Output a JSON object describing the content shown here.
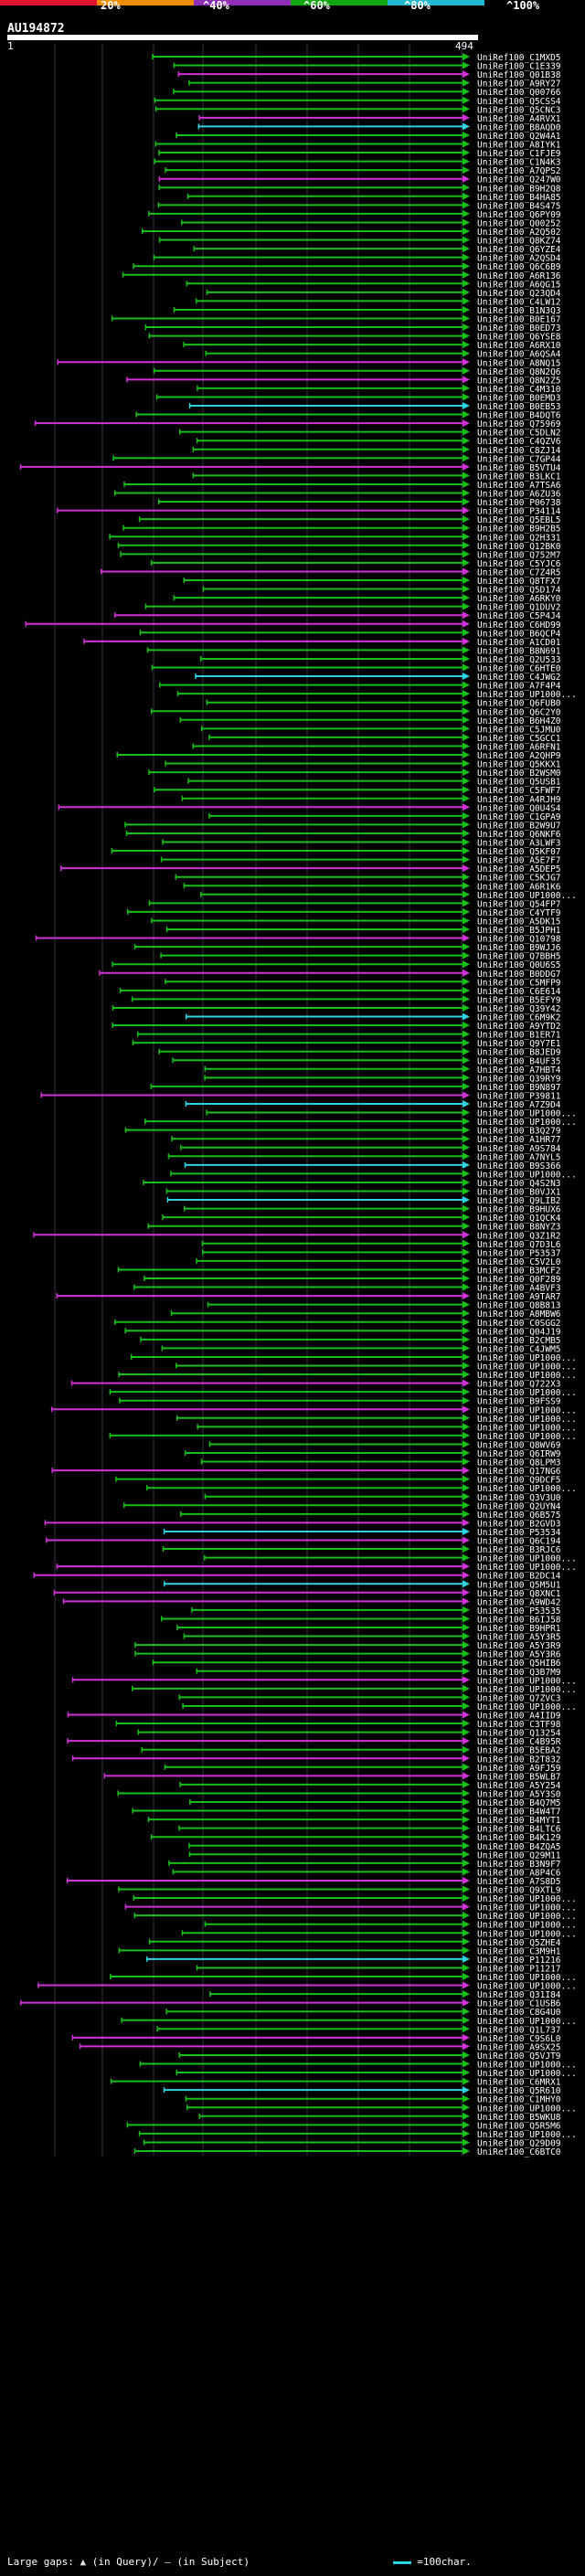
{
  "header": {
    "percent_labels": [
      "20%",
      "^40%",
      "^60%",
      "^80%",
      "^100%"
    ],
    "query_id": "AU194872",
    "scale_start": "1",
    "scale_end": "494"
  },
  "colors": {
    "bar": [
      "#e0142c",
      "#f08c00",
      "#8f2fb5",
      "#11a811",
      "#1fb8cf"
    ],
    "green": "#16c016",
    "magenta": "#d132d8",
    "cyan": "#2fd3e0",
    "grid": "#334"
  },
  "hits": [
    "UniRef100_C1MXD5",
    "UniRef100_C1E339",
    "UniRef100_Q01B38",
    "UniRef100_A9RY27",
    "UniRef100_Q00766",
    "UniRef100_Q5CSS4",
    "UniRef100_Q5CNC3",
    "UniRef100_A4RVX1",
    "UniRef100_B8AQD0",
    "UniRef100_Q2W4A1",
    "UniRef100_A8IYK1",
    "UniRef100_C1FJE9",
    "UniRef100_C1N4K3",
    "UniRef100_A7QPS2",
    "UniRef100_Q247W0",
    "UniRef100_B9H2Q8",
    "UniRef100_B4HA85",
    "UniRef100_B4S475",
    "UniRef100_Q6PY09",
    "UniRef100_Q00252",
    "UniRef100_A2Q502",
    "UniRef100_Q8KZ74",
    "UniRef100_Q6YZE4",
    "UniRef100_A2QSD4",
    "UniRef100_Q6C6B9",
    "UniRef100_A6R136",
    "UniRef100_A6QG15",
    "UniRef100_Q23QD4",
    "UniRef100_C4LW12",
    "UniRef100_B1N3Q3",
    "UniRef100_B0E167",
    "UniRef100_B0ED73",
    "UniRef100_Q6YSE8",
    "UniRef100_A6RX10",
    "UniRef100_A6QSA4",
    "UniRef100_A8NQ15",
    "UniRef100_Q8N2Q6",
    "UniRef100_Q8N2Z5",
    "UniRef100_C4M310",
    "UniRef100_B0EMD3",
    "UniRef100_B0EB53",
    "UniRef100_B4DQT6",
    "UniRef100_Q75969",
    "UniRef100_C5DLN2",
    "UniRef100_C4QZV6",
    "UniRef100_C8ZJ14",
    "UniRef100_C7GP44",
    "UniRef100_B5VTU4",
    "UniRef100_B3LKC1",
    "UniRef100_A7TSA6",
    "UniRef100_A6ZU36",
    "UniRef100_P06738",
    "UniRef100_P34114",
    "UniRef100_Q5EBL5",
    "UniRef100_B9H2B5",
    "UniRef100_Q2H331",
    "UniRef100_Q12BK0",
    "UniRef100_Q752M7",
    "UniRef100_C5YJC6",
    "UniRef100_C7Z4R5",
    "UniRef100_Q8TFX7",
    "UniRef100_Q5D174",
    "UniRef100_A6RKY0",
    "UniRef100_Q1DUV2",
    "UniRef100_C5P4J4",
    "UniRef100_C6HD99",
    "UniRef100_B6QCP4",
    "UniRef100_A1CD01",
    "UniRef100_B8N691",
    "UniRef100_Q2U533",
    "UniRef100_C6HTE0",
    "UniRef100_C4JWG2",
    "UniRef100_A7F4P4",
    "UniRef100_UP1000...",
    "UniRef100_Q6FUB0",
    "UniRef100_Q6C2Y0",
    "UniRef100_B6H4Z0",
    "UniRef100_C5JMU0",
    "UniRef100_C5GCC1",
    "UniRef100_A6RFN1",
    "UniRef100_A2QHP9",
    "UniRef100_Q5KKX1",
    "UniRef100_B2WSM0",
    "UniRef100_Q5USB1",
    "UniRef100_C5FWF7",
    "UniRef100_A4RJH9",
    "UniRef100_Q0U4S4",
    "UniRef100_C1GPA9",
    "UniRef100_B2W9U7",
    "UniRef100_Q6NKF6",
    "UniRef100_A3LWF3",
    "UniRef100_Q5KF07",
    "UniRef100_A5E7F7",
    "UniRef100_A5DEP5",
    "UniRef100_C5KJG7",
    "UniRef100_A6R1K6",
    "UniRef100_UP1000...",
    "UniRef100_Q54FP7",
    "UniRef100_C4YTF9",
    "UniRef100_A5DK15",
    "UniRef100_B5JPH1",
    "UniRef100_Q10798",
    "UniRef100_B9WJJ6",
    "UniRef100_Q7BBH5",
    "UniRef100_Q0U6S5",
    "UniRef100_B0DDG7",
    "UniRef100_C5MFP9",
    "UniRef100_C6E614",
    "UniRef100_B5EFY9",
    "UniRef100_Q39Y42",
    "UniRef100_C6M9K2",
    "UniRef100_A9YTD2",
    "UniRef100_B1ER71",
    "UniRef100_Q9Y7E1",
    "UniRef100_B8JED9",
    "UniRef100_B4UF35",
    "UniRef100_A7HBT4",
    "UniRef100_Q39RY9",
    "UniRef100_B9N897",
    "UniRef100_P39811",
    "UniRef100_A7Z9D4",
    "UniRef100_UP1000...",
    "UniRef100_UP1000...",
    "UniRef100_B3Q279",
    "UniRef100_A1HR77",
    "UniRef100_A9S784",
    "UniRef100_A7NYL5",
    "UniRef100_B9S366",
    "UniRef100_UP1000...",
    "UniRef100_Q4S2N3",
    "UniRef100_B0VJX1",
    "UniRef100_Q9LIB2",
    "UniRef100_B9HUX6",
    "UniRef100_Q1QCK4",
    "UniRef100_B8NYZ3",
    "UniRef100_Q3Z1R2",
    "UniRef100_Q7D3L6",
    "UniRef100_P53537",
    "UniRef100_C5V2L0",
    "UniRef100_B3MCF2",
    "UniRef100_Q0F289",
    "UniRef100_A4BVF3",
    "UniRef100_A9TAR7",
    "UniRef100_Q8B813",
    "UniRef100_A8MBW6",
    "UniRef100_C0SGG2",
    "UniRef100_Q04J19",
    "UniRef100_B2CMB5",
    "UniRef100_C4JWM5",
    "UniRef100_UP1000...",
    "UniRef100_UP1000...",
    "UniRef100_UP1000...",
    "UniRef100_Q722X3",
    "UniRef100_UP1000...",
    "UniRef100_B9FSS9",
    "UniRef100_UP1000...",
    "UniRef100_UP1000...",
    "UniRef100_UP1000...",
    "UniRef100_UP1000...",
    "UniRef100_Q8WV69",
    "UniRef100_Q6IRW9",
    "UniRef100_Q8LPM3",
    "UniRef100_Q17NG6",
    "UniRef100_Q9DCF5",
    "UniRef100_UP1000...",
    "UniRef100_Q3V3U0",
    "UniRef100_Q2UYN4",
    "UniRef100_Q6B575",
    "UniRef100_B2GVD3",
    "UniRef100_P53534",
    "UniRef100_Q6C194",
    "UniRef100_B3RJC6",
    "UniRef100_UP1000...",
    "UniRef100_UP1000...",
    "UniRef100_B2DC14",
    "UniRef100_Q5M5U1",
    "UniRef100_Q8XNC1",
    "UniRef100_A9WD42",
    "UniRef100_P53535",
    "UniRef100_B6IJ58",
    "UniRef100_B9HPR1",
    "UniRef100_A5Y3R5",
    "UniRef100_A5Y3R9",
    "UniRef100_A5Y3R6",
    "UniRef100_Q5HIB6",
    "UniRef100_Q3B7M9",
    "UniRef100_UP1000...",
    "UniRef100_UP1000...",
    "UniRef100_Q7ZVC3",
    "UniRef100_UP1000...",
    "UniRef100_A4IID9",
    "UniRef100_C3TF98",
    "UniRef100_Q13254",
    "UniRef100_C4B95R",
    "UniRef100_B5EBA2",
    "UniRef100_B2T832",
    "UniRef100_A9FJ59",
    "UniRef100_B5WLB7",
    "UniRef100_A5Y254",
    "UniRef100_A5Y3S0",
    "UniRef100_B4Q7M5",
    "UniRef100_B4W4T7",
    "UniRef100_B4MYT1",
    "UniRef100_B4LTC6",
    "UniRef100_B4K129",
    "UniRef100_B4ZQA5",
    "UniRef100_Q29M11",
    "UniRef100_B3N9F7",
    "UniRef100_A8P4C6",
    "UniRef100_A7S8D5",
    "UniRef100_Q9XTL9",
    "UniRef100_UP1000...",
    "UniRef100_UP1000...",
    "UniRef100_UP1000...",
    "UniRef100_UP1000...",
    "UniRef100_UP1000...",
    "UniRef100_Q5ZHE4",
    "UniRef100_C3M9H1",
    "UniRef100_P11216",
    "UniRef100_P11217",
    "UniRef100_UP1000...",
    "UniRef100_UP1000...",
    "UniRef100_Q31I84",
    "UniRef100_C1USB6",
    "UniRef100_C8G4U0",
    "UniRef100_UP1000...",
    "UniRef100_Q1L737",
    "UniRef100_C9S6L0",
    "UniRef100_A9SX25",
    "UniRef100_Q5VJT9",
    "UniRef100_UP1000...",
    "UniRef100_UP1000...",
    "UniRef100_C6MRX1",
    "UniRef100_Q5R610",
    "UniRef100_C1MHY0",
    "UniRef100_UP1000...",
    "UniRef100_B5WKU8",
    "UniRef100_Q5R5M6",
    "UniRef100_UP1000...",
    "UniRef100_Q29D09",
    "UniRef100_C6BTC0"
  ],
  "footer": {
    "gap_label": "Large gaps:",
    "q_label": "(in Query)/",
    "s_label": "(in Subject)",
    "scale_label": "=100char."
  }
}
